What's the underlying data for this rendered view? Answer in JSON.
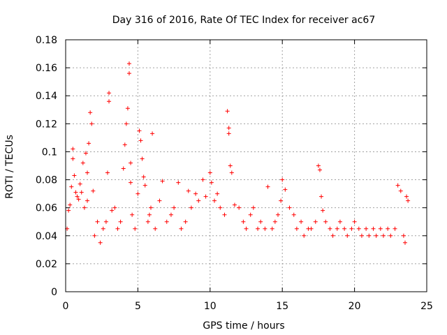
{
  "chart_data": {
    "type": "scatter",
    "title": "Day 316 of 2016, Rate Of TEC Index for receiver ac67",
    "xlabel": "GPS time / hours",
    "ylabel": "ROTI / TECUs",
    "xlim": [
      0,
      25
    ],
    "ylim": [
      0,
      0.18
    ],
    "grid": true,
    "marker": "plus",
    "color": "#ff0000",
    "xticks": [
      0,
      5,
      10,
      15,
      20,
      25
    ],
    "xtick_labels": [
      "0",
      "5",
      "10",
      "15",
      "20",
      "25"
    ],
    "yticks": [
      0,
      0.02,
      0.04,
      0.06,
      0.08,
      0.1,
      0.12,
      0.14,
      0.16,
      0.18
    ],
    "ytick_labels": [
      "0",
      "0.02",
      "0.04",
      "0.06",
      "0.08",
      "0.1",
      "0.12",
      "0.14",
      "0.16",
      "0.18"
    ],
    "series": [
      {
        "x": [
          0.1,
          0.2,
          0.3,
          0.4,
          0.5,
          0.5,
          0.6,
          0.7,
          0.8,
          0.9,
          1.0,
          1.1,
          1.2,
          1.3,
          1.4,
          1.5,
          1.5,
          1.6,
          1.7,
          1.8,
          1.9,
          2.0,
          2.2,
          2.4,
          2.6,
          2.8,
          2.9,
          3.0,
          3.0,
          3.2,
          3.4,
          3.6,
          3.8,
          4.0,
          4.1,
          4.2,
          4.3,
          4.4,
          4.4,
          4.5,
          4.5,
          4.6,
          4.8,
          5.0,
          5.1,
          5.2,
          5.3,
          5.4,
          5.5,
          5.7,
          5.8,
          5.9,
          6.0,
          6.2,
          6.5,
          6.7,
          7.0,
          7.3,
          7.5,
          7.8,
          8.0,
          8.3,
          8.5,
          8.7,
          9.0,
          9.2,
          9.5,
          9.7,
          10.0,
          10.1,
          10.3,
          10.5,
          10.7,
          11.0,
          11.2,
          11.3,
          11.3,
          11.4,
          11.5,
          11.7,
          12.0,
          12.3,
          12.5,
          12.8,
          13.0,
          13.3,
          13.5,
          13.8,
          14.0,
          14.3,
          14.5,
          14.7,
          14.9,
          15.0,
          15.2,
          15.5,
          15.8,
          16.0,
          16.3,
          16.5,
          16.8,
          17.0,
          17.3,
          17.5,
          17.6,
          17.7,
          17.8,
          18.0,
          18.3,
          18.5,
          18.8,
          19.0,
          19.3,
          19.5,
          19.8,
          20.0,
          20.3,
          20.5,
          20.8,
          21.0,
          21.3,
          21.5,
          21.8,
          22.0,
          22.3,
          22.5,
          22.8,
          23.0,
          23.2,
          23.4,
          23.5,
          23.6,
          23.7
        ],
        "y": [
          0.045,
          0.058,
          0.062,
          0.075,
          0.102,
          0.095,
          0.083,
          0.071,
          0.068,
          0.066,
          0.077,
          0.071,
          0.092,
          0.06,
          0.099,
          0.085,
          0.065,
          0.106,
          0.128,
          0.12,
          0.072,
          0.04,
          0.05,
          0.035,
          0.045,
          0.05,
          0.085,
          0.142,
          0.136,
          0.058,
          0.06,
          0.045,
          0.05,
          0.088,
          0.105,
          0.12,
          0.131,
          0.156,
          0.163,
          0.092,
          0.078,
          0.055,
          0.045,
          0.07,
          0.115,
          0.108,
          0.095,
          0.082,
          0.076,
          0.05,
          0.055,
          0.06,
          0.113,
          0.045,
          0.065,
          0.079,
          0.05,
          0.055,
          0.06,
          0.078,
          0.045,
          0.05,
          0.072,
          0.06,
          0.07,
          0.065,
          0.08,
          0.068,
          0.085,
          0.078,
          0.065,
          0.07,
          0.06,
          0.055,
          0.129,
          0.117,
          0.113,
          0.09,
          0.085,
          0.062,
          0.06,
          0.05,
          0.045,
          0.055,
          0.06,
          0.045,
          0.05,
          0.045,
          0.075,
          0.045,
          0.05,
          0.055,
          0.065,
          0.08,
          0.073,
          0.06,
          0.055,
          0.045,
          0.05,
          0.04,
          0.045,
          0.045,
          0.05,
          0.09,
          0.087,
          0.068,
          0.058,
          0.05,
          0.045,
          0.04,
          0.045,
          0.05,
          0.045,
          0.04,
          0.045,
          0.05,
          0.045,
          0.04,
          0.045,
          0.04,
          0.045,
          0.04,
          0.045,
          0.04,
          0.045,
          0.04,
          0.045,
          0.076,
          0.072,
          0.04,
          0.035,
          0.068,
          0.065
        ]
      }
    ]
  }
}
